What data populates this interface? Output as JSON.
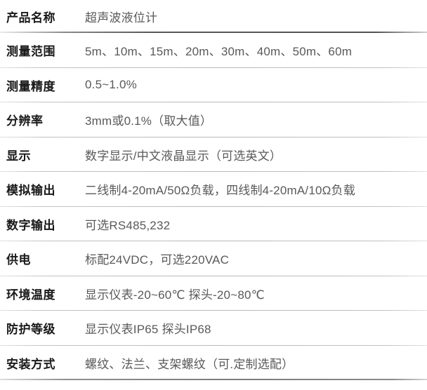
{
  "table": {
    "rows": [
      {
        "label": "产品名称",
        "value": "超声波液位计"
      },
      {
        "label": "测量范围",
        "value": "5m、10m、15m、20m、30m、40m、50m、60m"
      },
      {
        "label": "测量精度",
        "value": "0.5~1.0%"
      },
      {
        "label": "分辨率",
        "value": "3mm或0.1%（取大值）"
      },
      {
        "label": "显示",
        "value": "数字显示/中文液晶显示（可选英文）"
      },
      {
        "label": "模拟输出",
        "value": "二线制4-20mA/50Ω负载，四线制4-20mA/10Ω负载"
      },
      {
        "label": "数字输出",
        "value": "可选RS485,232"
      },
      {
        "label": "供电",
        "value": "标配24VDC，可选220VAC"
      },
      {
        "label": "环境温度",
        "value": "显示仪表-20~60℃ 探头-20~80℃"
      },
      {
        "label": "防护等级",
        "value": "显示仪表IP65 探头IP68"
      },
      {
        "label": "安装方式",
        "value": "螺纹、法兰、支架螺纹（可.定制选配）"
      }
    ]
  },
  "colors": {
    "label_text": "#1a1a1a",
    "value_text": "#595959",
    "divider_strong": "#555555",
    "divider_light": "#bcbcbc",
    "divider_bottom": "#7c7c7c",
    "background": "#ffffff"
  }
}
